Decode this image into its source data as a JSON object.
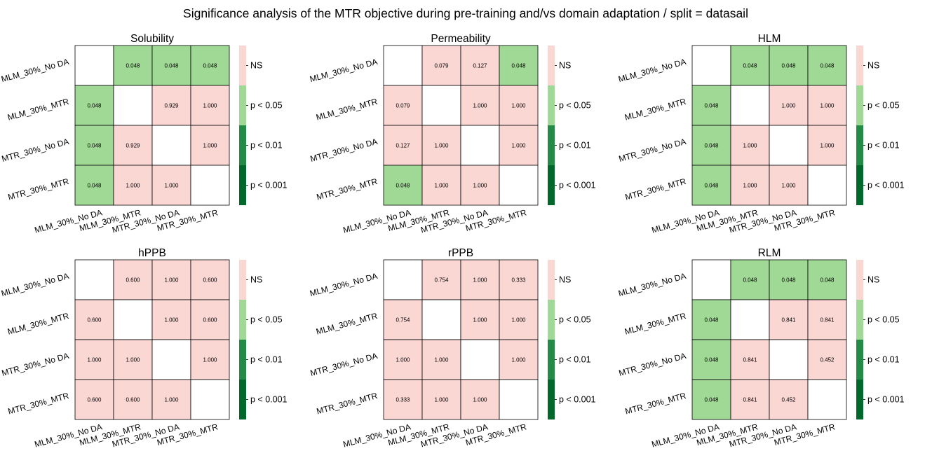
{
  "title": "Significance analysis of the MTR objective during pre-training and/vs domain adaptation / split = datasail",
  "legend": {
    "bins": [
      {
        "label": "NS",
        "color": "#fbd7d4"
      },
      {
        "label": "p < 0.05",
        "color": "#a0d995"
      },
      {
        "label": "p < 0.01",
        "color": "#238b45"
      },
      {
        "label": "p < 0.001",
        "color": "#00682a"
      }
    ]
  },
  "colors": {
    "ns": "#fbd7d4",
    "p05": "#a0d995",
    "p01": "#238b45",
    "p001": "#00682a",
    "diagonal": "#ffffff",
    "grid": "#000000"
  },
  "chart_data": [
    {
      "type": "heatmap",
      "title": "Solubility",
      "categories": [
        "MLM_30%_No DA",
        "MLM_30%_MTR",
        "MTR_30%_No DA",
        "MTR_30%_MTR"
      ],
      "values": [
        [
          null,
          "0.048",
          "0.048",
          "0.048"
        ],
        [
          "0.048",
          null,
          "0.929",
          "1.000"
        ],
        [
          "0.048",
          "0.929",
          null,
          "1.000"
        ],
        [
          "0.048",
          "1.000",
          "1.000",
          null
        ]
      ]
    },
    {
      "type": "heatmap",
      "title": "Permeability",
      "categories": [
        "MLM_30%_No DA",
        "MLM_30%_MTR",
        "MTR_30%_No DA",
        "MTR_30%_MTR"
      ],
      "values": [
        [
          null,
          "0.079",
          "0.127",
          "0.048"
        ],
        [
          "0.079",
          null,
          "1.000",
          "1.000"
        ],
        [
          "0.127",
          "1.000",
          null,
          "1.000"
        ],
        [
          "0.048",
          "1.000",
          "1.000",
          null
        ]
      ]
    },
    {
      "type": "heatmap",
      "title": "HLM",
      "categories": [
        "MLM_30%_No DA",
        "MLM_30%_MTR",
        "MTR_30%_No DA",
        "MTR_30%_MTR"
      ],
      "values": [
        [
          null,
          "0.048",
          "0.048",
          "0.048"
        ],
        [
          "0.048",
          null,
          "1.000",
          "1.000"
        ],
        [
          "0.048",
          "1.000",
          null,
          "1.000"
        ],
        [
          "0.048",
          "1.000",
          "1.000",
          null
        ]
      ]
    },
    {
      "type": "heatmap",
      "title": "hPPB",
      "categories": [
        "MLM_30%_No DA",
        "MLM_30%_MTR",
        "MTR_30%_No DA",
        "MTR_30%_MTR"
      ],
      "values": [
        [
          null,
          "0.600",
          "1.000",
          "0.600"
        ],
        [
          "0.600",
          null,
          "1.000",
          "0.600"
        ],
        [
          "1.000",
          "1.000",
          null,
          "1.000"
        ],
        [
          "0.600",
          "0.600",
          "1.000",
          null
        ]
      ]
    },
    {
      "type": "heatmap",
      "title": "rPPB",
      "categories": [
        "MLM_30%_No DA",
        "MLM_30%_MTR",
        "MTR_30%_No DA",
        "MTR_30%_MTR"
      ],
      "values": [
        [
          null,
          "0.754",
          "1.000",
          "0.333"
        ],
        [
          "0.754",
          null,
          "1.000",
          "1.000"
        ],
        [
          "1.000",
          "1.000",
          null,
          "1.000"
        ],
        [
          "0.333",
          "1.000",
          "1.000",
          null
        ]
      ]
    },
    {
      "type": "heatmap",
      "title": "RLM",
      "categories": [
        "MLM_30%_No DA",
        "MLM_30%_MTR",
        "MTR_30%_No DA",
        "MTR_30%_MTR"
      ],
      "values": [
        [
          null,
          "0.048",
          "0.048",
          "0.048"
        ],
        [
          "0.048",
          null,
          "0.841",
          "0.841"
        ],
        [
          "0.048",
          "0.841",
          null,
          "0.452"
        ],
        [
          "0.048",
          "0.841",
          "0.452",
          null
        ]
      ]
    }
  ]
}
